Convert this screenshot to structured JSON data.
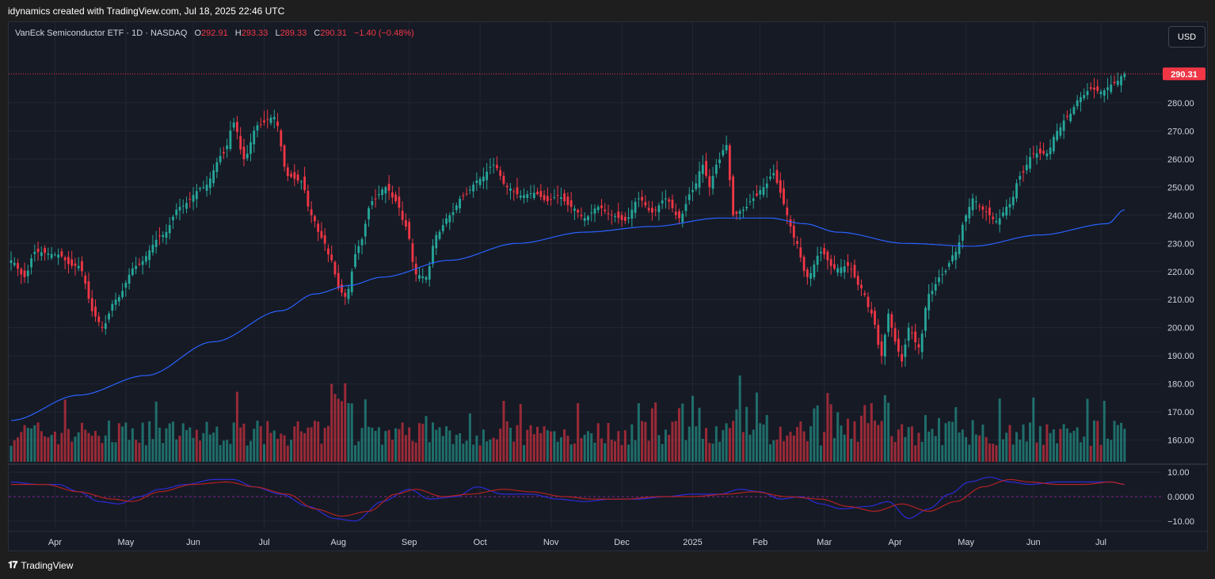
{
  "caption": "idynamics created with TradingView.com, Jul 18, 2025 22:46 UTC",
  "legend": {
    "symbol": "VanEck Semiconductor ETF · 1D · NASDAQ",
    "open_label": "O",
    "open": "292.91",
    "high_label": "H",
    "high": "293.33",
    "low_label": "L",
    "low": "289.33",
    "close_label": "C",
    "close": "290.31",
    "change": "−1.40 (−0.48%)"
  },
  "currency_button": "USD",
  "footer": {
    "brand": "TradingView",
    "icon": "tradingview-logo-icon"
  },
  "colors": {
    "up": "#26a69a",
    "down": "#f23645",
    "ma": "#2962ff",
    "osc_fast": "#2b2bd6",
    "osc_slow": "#b22222",
    "background": "#161a25",
    "price_tag": "#f23645"
  },
  "chart_data": {
    "type": "candlestick",
    "title": "VanEck Semiconductor ETF · 1D · NASDAQ",
    "current_price_label": "290.31",
    "y_price_ticks": [
      "280.00",
      "270.00",
      "260.00",
      "250.00",
      "240.00",
      "230.00",
      "220.00",
      "210.00",
      "200.00",
      "190.00",
      "180.00",
      "170.00",
      "160.00"
    ],
    "y_price_values": [
      280,
      270,
      260,
      250,
      240,
      230,
      220,
      210,
      200,
      190,
      180,
      170,
      160
    ],
    "price_range": [
      152.3,
      308.7
    ],
    "y_osc_ticks": [
      "10.00",
      "0.0000",
      "−10.00"
    ],
    "y_osc_values": [
      10,
      0,
      -10
    ],
    "osc_range": [
      -13.3,
      12.0
    ],
    "x_ticks": [
      "Apr",
      "May",
      "Jun",
      "Jul",
      "Aug",
      "Sep",
      "Oct",
      "Nov",
      "Dec",
      "2025",
      "Feb",
      "Mar",
      "Apr",
      "May",
      "Jun",
      "Jul"
    ],
    "x_tick_bars": [
      13,
      34,
      54,
      75,
      97,
      118,
      139,
      160,
      181,
      202,
      222,
      241,
      262,
      283,
      303,
      323
    ],
    "bar_count": 337,
    "grid": true,
    "close_anchors": [
      [
        0,
        224
      ],
      [
        4,
        218
      ],
      [
        7,
        227
      ],
      [
        14,
        226
      ],
      [
        18,
        222
      ],
      [
        20,
        222
      ],
      [
        25,
        204
      ],
      [
        27,
        200
      ],
      [
        31,
        210
      ],
      [
        37,
        222
      ],
      [
        45,
        233
      ],
      [
        50,
        243
      ],
      [
        57,
        250
      ],
      [
        63,
        262
      ],
      [
        66,
        273
      ],
      [
        69,
        260
      ],
      [
        73,
        272
      ],
      [
        78,
        275
      ],
      [
        82,
        254
      ],
      [
        86,
        252
      ],
      [
        89,
        240
      ],
      [
        92,
        232
      ],
      [
        95,
        224
      ],
      [
        97,
        214
      ],
      [
        99,
        211
      ],
      [
        103,
        229
      ],
      [
        107,
        245
      ],
      [
        111,
        250
      ],
      [
        114,
        245
      ],
      [
        117,
        236
      ],
      [
        120,
        219
      ],
      [
        123,
        218
      ],
      [
        126,
        233
      ],
      [
        130,
        240
      ],
      [
        134,
        247
      ],
      [
        139,
        253
      ],
      [
        143,
        258
      ],
      [
        147,
        250
      ],
      [
        151,
        247
      ],
      [
        155,
        248
      ],
      [
        159,
        245
      ],
      [
        162,
        247
      ],
      [
        166,
        243
      ],
      [
        170,
        239
      ],
      [
        174,
        243
      ],
      [
        178,
        240
      ],
      [
        182,
        238
      ],
      [
        186,
        246
      ],
      [
        190,
        241
      ],
      [
        194,
        246
      ],
      [
        198,
        239
      ],
      [
        202,
        249
      ],
      [
        205,
        258
      ],
      [
        207,
        250
      ],
      [
        209,
        258
      ],
      [
        212,
        265
      ],
      [
        214,
        240
      ],
      [
        217,
        242
      ],
      [
        220,
        246
      ],
      [
        223,
        250
      ],
      [
        226,
        255
      ],
      [
        228,
        248
      ],
      [
        230,
        240
      ],
      [
        232,
        232
      ],
      [
        236,
        218
      ],
      [
        240,
        227
      ],
      [
        244,
        221
      ],
      [
        248,
        222
      ],
      [
        252,
        214
      ],
      [
        255,
        205
      ],
      [
        258,
        190
      ],
      [
        260,
        205
      ],
      [
        262,
        195
      ],
      [
        264,
        188
      ],
      [
        266,
        200
      ],
      [
        269,
        193
      ],
      [
        272,
        212
      ],
      [
        276,
        219
      ],
      [
        280,
        227
      ],
      [
        283,
        240
      ],
      [
        285,
        246
      ],
      [
        288,
        242
      ],
      [
        292,
        238
      ],
      [
        296,
        244
      ],
      [
        299,
        254
      ],
      [
        303,
        262
      ],
      [
        307,
        262
      ],
      [
        310,
        270
      ],
      [
        313,
        275
      ],
      [
        317,
        282
      ],
      [
        320,
        285
      ],
      [
        323,
        284
      ],
      [
        327,
        287
      ],
      [
        330,
        290.31
      ]
    ],
    "ma_anchors": [
      [
        0,
        167
      ],
      [
        20,
        176
      ],
      [
        40,
        183
      ],
      [
        60,
        195
      ],
      [
        80,
        206
      ],
      [
        90,
        212
      ],
      [
        100,
        215
      ],
      [
        110,
        218
      ],
      [
        130,
        224
      ],
      [
        150,
        230
      ],
      [
        170,
        234
      ],
      [
        190,
        236
      ],
      [
        210,
        239
      ],
      [
        225,
        239
      ],
      [
        235,
        237
      ],
      [
        245,
        234
      ],
      [
        265,
        230
      ],
      [
        285,
        229
      ],
      [
        305,
        233
      ],
      [
        325,
        237
      ],
      [
        330,
        242
      ]
    ],
    "volume_scale": {
      "max_level": 183,
      "base_level": 152.3
    },
    "osc_fast_anchors": [
      [
        0,
        6
      ],
      [
        8,
        5
      ],
      [
        14,
        5
      ],
      [
        20,
        2
      ],
      [
        26,
        -2
      ],
      [
        32,
        -3
      ],
      [
        38,
        0
      ],
      [
        44,
        3
      ],
      [
        52,
        5
      ],
      [
        60,
        7
      ],
      [
        66,
        7
      ],
      [
        72,
        4
      ],
      [
        80,
        1
      ],
      [
        88,
        -4
      ],
      [
        96,
        -9
      ],
      [
        102,
        -10
      ],
      [
        110,
        -2
      ],
      [
        118,
        3
      ],
      [
        124,
        -1
      ],
      [
        132,
        0
      ],
      [
        138,
        4
      ],
      [
        146,
        1
      ],
      [
        154,
        1
      ],
      [
        162,
        -1
      ],
      [
        170,
        -2
      ],
      [
        178,
        -1
      ],
      [
        186,
        -1
      ],
      [
        194,
        0
      ],
      [
        202,
        1
      ],
      [
        210,
        1
      ],
      [
        216,
        3
      ],
      [
        222,
        2
      ],
      [
        228,
        -1
      ],
      [
        234,
        0
      ],
      [
        240,
        -3
      ],
      [
        246,
        -5
      ],
      [
        254,
        -4
      ],
      [
        260,
        -2
      ],
      [
        266,
        -9
      ],
      [
        272,
        -5
      ],
      [
        278,
        1
      ],
      [
        284,
        6
      ],
      [
        290,
        8
      ],
      [
        296,
        6
      ],
      [
        302,
        5
      ],
      [
        310,
        6
      ],
      [
        318,
        6
      ],
      [
        326,
        6
      ],
      [
        330,
        5
      ]
    ],
    "osc_slow_anchors": [
      [
        0,
        5
      ],
      [
        10,
        5
      ],
      [
        20,
        2
      ],
      [
        30,
        -1
      ],
      [
        36,
        -2
      ],
      [
        44,
        2
      ],
      [
        54,
        5
      ],
      [
        64,
        6
      ],
      [
        72,
        4
      ],
      [
        82,
        1
      ],
      [
        90,
        -5
      ],
      [
        98,
        -8
      ],
      [
        106,
        -6
      ],
      [
        114,
        1
      ],
      [
        120,
        3
      ],
      [
        128,
        0
      ],
      [
        136,
        1
      ],
      [
        146,
        3
      ],
      [
        154,
        2
      ],
      [
        164,
        0
      ],
      [
        172,
        -1
      ],
      [
        182,
        -1
      ],
      [
        192,
        0
      ],
      [
        202,
        0
      ],
      [
        212,
        1
      ],
      [
        220,
        2
      ],
      [
        230,
        0
      ],
      [
        240,
        -1
      ],
      [
        248,
        -4
      ],
      [
        256,
        -6
      ],
      [
        264,
        -3
      ],
      [
        272,
        -6
      ],
      [
        280,
        -2
      ],
      [
        288,
        4
      ],
      [
        296,
        7
      ],
      [
        302,
        6
      ],
      [
        310,
        5
      ],
      [
        318,
        5
      ],
      [
        326,
        6
      ],
      [
        330,
        5
      ]
    ]
  }
}
